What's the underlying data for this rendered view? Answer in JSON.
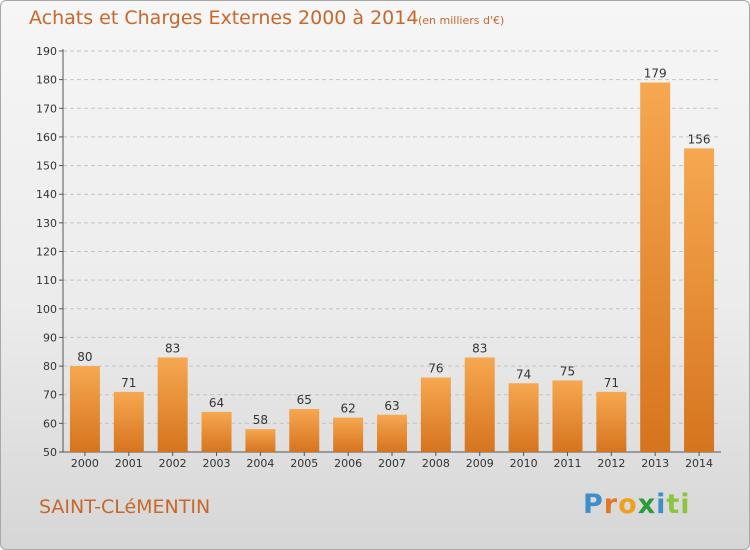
{
  "header": {
    "title": "Achats et Charges Externes 2000 à 2014",
    "unit": "(en milliers d'€)"
  },
  "footer": {
    "commune": "SAINT-CLéMENTIN",
    "logo_letters": [
      "P",
      "r",
      "o",
      "x",
      "i",
      "ti"
    ]
  },
  "colors": {
    "bar_light": "#f6a850",
    "bar_dark": "#d6741e",
    "text_accent": "#c7682a"
  },
  "chart_data": {
    "type": "bar",
    "title": "Achats et Charges Externes 2000 à 2014",
    "subtitle": "(en milliers d'€)",
    "xlabel": "",
    "ylabel": "",
    "categories": [
      "2000",
      "2001",
      "2002",
      "2003",
      "2004",
      "2005",
      "2006",
      "2007",
      "2008",
      "2009",
      "2010",
      "2011",
      "2012",
      "2013",
      "2014"
    ],
    "values": [
      80,
      71,
      83,
      64,
      58,
      65,
      62,
      63,
      76,
      83,
      74,
      75,
      71,
      179,
      156
    ],
    "ylim": [
      50,
      190
    ],
    "yticks": [
      50,
      60,
      70,
      80,
      90,
      100,
      110,
      120,
      130,
      140,
      150,
      160,
      170,
      180,
      190
    ],
    "grid": true,
    "legend": "none"
  }
}
